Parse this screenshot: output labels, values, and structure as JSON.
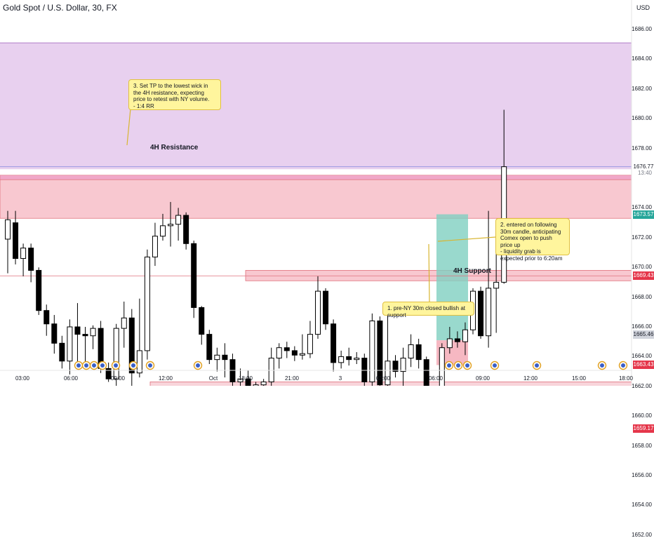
{
  "header": {
    "symbol_title": "Gold Spot / U.S. Dollar, 30, FX",
    "currency": "USD"
  },
  "colors": {
    "up_candle": "#ffffff",
    "down_candle": "#000000",
    "resistance_zone": "#e8d0ef",
    "resistance_fill": "#f8c8d0",
    "support_fill": "#f8d4da",
    "zone_line": "#e0707c",
    "callout_bg": "#fff59d",
    "tp_fill": "#7fd0c0",
    "sl_fill": "#f6b8c2",
    "red_tag": "#e5364a",
    "green_tag": "#26a69a",
    "grey_tag": "#d1d4dc"
  },
  "annotations": {
    "resistance_label": "4H Resistance",
    "support_label": "4H Support",
    "note_tp": "3. Set TP to the lowest wick in the 4H resistance, expecting price to retest with NY volume.\n- 1:4 RR",
    "note_entry": "2. entered on following 30m candle, anticipating Comex open to push price up\n- liquidity grab is expected prior to 6:20am",
    "note_preny": "1. pre-NY 30m closed bullish at support"
  },
  "price_axis": {
    "ticks": [
      "1686.00",
      "1684.00",
      "1682.00",
      "1680.00",
      "1678.00",
      "1674.00",
      "1672.00",
      "1670.00",
      "1668.00",
      "1666.00",
      "1664.00",
      "1662.00",
      "1660.00",
      "1658.00",
      "1656.00",
      "1654.00",
      "1652.00"
    ],
    "tags": [
      {
        "label": "1676.77",
        "sub": "13:40",
        "value": 1676.77,
        "style": "grey"
      },
      {
        "label": "1673.57",
        "value": 1673.57,
        "style": "green"
      },
      {
        "label": "1669.43",
        "value": 1669.43,
        "style": "red"
      },
      {
        "label": "1665.46",
        "value": 1665.46,
        "style": "grey"
      },
      {
        "label": "1663.43",
        "value": 1663.43,
        "style": "red"
      },
      {
        "label": "1659.17",
        "value": 1659.17,
        "style": "red"
      }
    ]
  },
  "time_axis": {
    "labels": [
      "03:00",
      "06:00",
      "09:00",
      "12:00",
      "Oct",
      "18:00",
      "21:00",
      "3",
      "03:00",
      "06:00",
      "09:00",
      "12:00",
      "15:00",
      "18:00"
    ]
  },
  "chart_data": {
    "type": "candlestick",
    "title": "Gold Spot / U.S. Dollar, 30, FX",
    "ylim": [
      1651,
      1687
    ],
    "grid": false,
    "zones": [
      {
        "name": "4H Resistance",
        "low": 1673.3,
        "high": 1675.9
      },
      {
        "name": "4H Support",
        "low": 1659.7,
        "high": 1662.3
      },
      {
        "name": "upper resistance band",
        "low": 1676.6,
        "high": 1685.1
      }
    ],
    "levels": [
      1669.43,
      1663.43,
      1659.17,
      1676.77
    ],
    "position": {
      "entry": 1665.1,
      "take_profit": 1673.57,
      "stop_loss": 1663.43
    },
    "candles": [
      {
        "o": 1671.9,
        "h": 1673.8,
        "l": 1669.6,
        "c": 1673.2
      },
      {
        "o": 1673.0,
        "h": 1673.8,
        "l": 1670.2,
        "c": 1670.6
      },
      {
        "o": 1670.6,
        "h": 1671.6,
        "l": 1669.4,
        "c": 1671.3
      },
      {
        "o": 1671.3,
        "h": 1671.6,
        "l": 1669.0,
        "c": 1669.8
      },
      {
        "o": 1669.8,
        "h": 1670.0,
        "l": 1666.8,
        "c": 1667.1
      },
      {
        "o": 1667.1,
        "h": 1667.5,
        "l": 1665.4,
        "c": 1666.2
      },
      {
        "o": 1666.2,
        "h": 1666.8,
        "l": 1664.2,
        "c": 1664.9
      },
      {
        "o": 1664.9,
        "h": 1665.4,
        "l": 1663.2,
        "c": 1663.7
      },
      {
        "o": 1663.7,
        "h": 1666.5,
        "l": 1662.8,
        "c": 1666.0
      },
      {
        "o": 1666.0,
        "h": 1667.6,
        "l": 1663.5,
        "c": 1665.5
      },
      {
        "o": 1665.5,
        "h": 1666.0,
        "l": 1663.4,
        "c": 1665.4
      },
      {
        "o": 1665.4,
        "h": 1666.1,
        "l": 1664.5,
        "c": 1665.9
      },
      {
        "o": 1665.9,
        "h": 1666.4,
        "l": 1662.9,
        "c": 1663.2
      },
      {
        "o": 1663.2,
        "h": 1663.6,
        "l": 1662.3,
        "c": 1662.5
      },
      {
        "o": 1662.5,
        "h": 1666.2,
        "l": 1662.0,
        "c": 1665.9
      },
      {
        "o": 1665.9,
        "h": 1667.7,
        "l": 1664.6,
        "c": 1666.6
      },
      {
        "o": 1666.6,
        "h": 1667.2,
        "l": 1662.0,
        "c": 1662.9
      },
      {
        "o": 1662.9,
        "h": 1667.9,
        "l": 1662.6,
        "c": 1664.4
      },
      {
        "o": 1664.4,
        "h": 1671.2,
        "l": 1663.8,
        "c": 1670.7
      },
      {
        "o": 1670.7,
        "h": 1673.0,
        "l": 1670.1,
        "c": 1672.1
      },
      {
        "o": 1672.1,
        "h": 1673.6,
        "l": 1671.8,
        "c": 1672.8
      },
      {
        "o": 1672.8,
        "h": 1674.4,
        "l": 1671.4,
        "c": 1672.9
      },
      {
        "o": 1672.9,
        "h": 1674.0,
        "l": 1671.8,
        "c": 1673.5
      },
      {
        "o": 1673.5,
        "h": 1673.7,
        "l": 1671.2,
        "c": 1671.6
      },
      {
        "o": 1671.6,
        "h": 1671.8,
        "l": 1666.6,
        "c": 1667.3
      },
      {
        "o": 1667.3,
        "h": 1667.4,
        "l": 1664.8,
        "c": 1665.5
      },
      {
        "o": 1665.5,
        "h": 1665.8,
        "l": 1663.5,
        "c": 1663.8
      },
      {
        "o": 1663.8,
        "h": 1664.6,
        "l": 1663.0,
        "c": 1664.1
      },
      {
        "o": 1664.1,
        "h": 1664.9,
        "l": 1662.6,
        "c": 1663.8
      },
      {
        "o": 1663.8,
        "h": 1664.2,
        "l": 1661.4,
        "c": 1662.3
      },
      {
        "o": 1662.3,
        "h": 1663.2,
        "l": 1661.3,
        "c": 1662.5
      },
      {
        "o": 1662.5,
        "h": 1663.1,
        "l": 1661.6,
        "c": 1661.9
      },
      {
        "o": 1661.9,
        "h": 1662.3,
        "l": 1661.1,
        "c": 1662.1
      },
      {
        "o": 1662.1,
        "h": 1662.5,
        "l": 1661.4,
        "c": 1662.3
      },
      {
        "o": 1662.3,
        "h": 1664.6,
        "l": 1662.0,
        "c": 1663.9
      },
      {
        "o": 1663.9,
        "h": 1664.9,
        "l": 1663.2,
        "c": 1664.6
      },
      {
        "o": 1664.6,
        "h": 1665.0,
        "l": 1663.9,
        "c": 1664.4
      },
      {
        "o": 1664.4,
        "h": 1664.7,
        "l": 1663.7,
        "c": 1664.1
      },
      {
        "o": 1664.1,
        "h": 1665.5,
        "l": 1663.8,
        "c": 1664.2
      },
      {
        "o": 1664.2,
        "h": 1666.4,
        "l": 1663.9,
        "c": 1665.5
      },
      {
        "o": 1665.5,
        "h": 1669.4,
        "l": 1665.2,
        "c": 1668.4
      },
      {
        "o": 1668.4,
        "h": 1668.6,
        "l": 1665.8,
        "c": 1666.2
      },
      {
        "o": 1666.2,
        "h": 1666.5,
        "l": 1663.0,
        "c": 1663.6
      },
      {
        "o": 1663.6,
        "h": 1664.4,
        "l": 1663.2,
        "c": 1664.0
      },
      {
        "o": 1664.0,
        "h": 1664.6,
        "l": 1663.4,
        "c": 1663.8
      },
      {
        "o": 1663.8,
        "h": 1664.3,
        "l": 1663.5,
        "c": 1663.9
      },
      {
        "o": 1663.9,
        "h": 1664.2,
        "l": 1661.8,
        "c": 1662.3
      },
      {
        "o": 1662.3,
        "h": 1666.9,
        "l": 1662.0,
        "c": 1666.4
      },
      {
        "o": 1666.4,
        "h": 1666.7,
        "l": 1661.7,
        "c": 1662.1
      },
      {
        "o": 1662.1,
        "h": 1667.1,
        "l": 1661.9,
        "c": 1663.7
      },
      {
        "o": 1663.7,
        "h": 1664.1,
        "l": 1662.6,
        "c": 1663.0
      },
      {
        "o": 1663.0,
        "h": 1664.6,
        "l": 1661.8,
        "c": 1663.9
      },
      {
        "o": 1663.9,
        "h": 1665.5,
        "l": 1663.3,
        "c": 1664.8
      },
      {
        "o": 1664.8,
        "h": 1665.2,
        "l": 1663.2,
        "c": 1663.8
      },
      {
        "o": 1663.8,
        "h": 1664.0,
        "l": 1661.0,
        "c": 1661.4
      },
      {
        "o": 1661.4,
        "h": 1662.0,
        "l": 1659.8,
        "c": 1661.6
      },
      {
        "o": 1661.6,
        "h": 1664.9,
        "l": 1660.1,
        "c": 1664.6
      },
      {
        "o": 1664.6,
        "h": 1666.0,
        "l": 1664.2,
        "c": 1665.2
      },
      {
        "o": 1665.2,
        "h": 1665.7,
        "l": 1664.6,
        "c": 1665.0
      },
      {
        "o": 1665.0,
        "h": 1666.3,
        "l": 1664.1,
        "c": 1665.8
      },
      {
        "o": 1665.8,
        "h": 1668.6,
        "l": 1665.5,
        "c": 1668.4
      },
      {
        "o": 1668.4,
        "h": 1668.7,
        "l": 1665.2,
        "c": 1665.4
      },
      {
        "o": 1665.4,
        "h": 1673.8,
        "l": 1664.6,
        "c": 1668.6
      },
      {
        "o": 1668.6,
        "h": 1672.5,
        "l": 1665.6,
        "c": 1669.0
      },
      {
        "o": 1669.0,
        "h": 1680.6,
        "l": 1668.9,
        "c": 1676.77
      }
    ]
  }
}
